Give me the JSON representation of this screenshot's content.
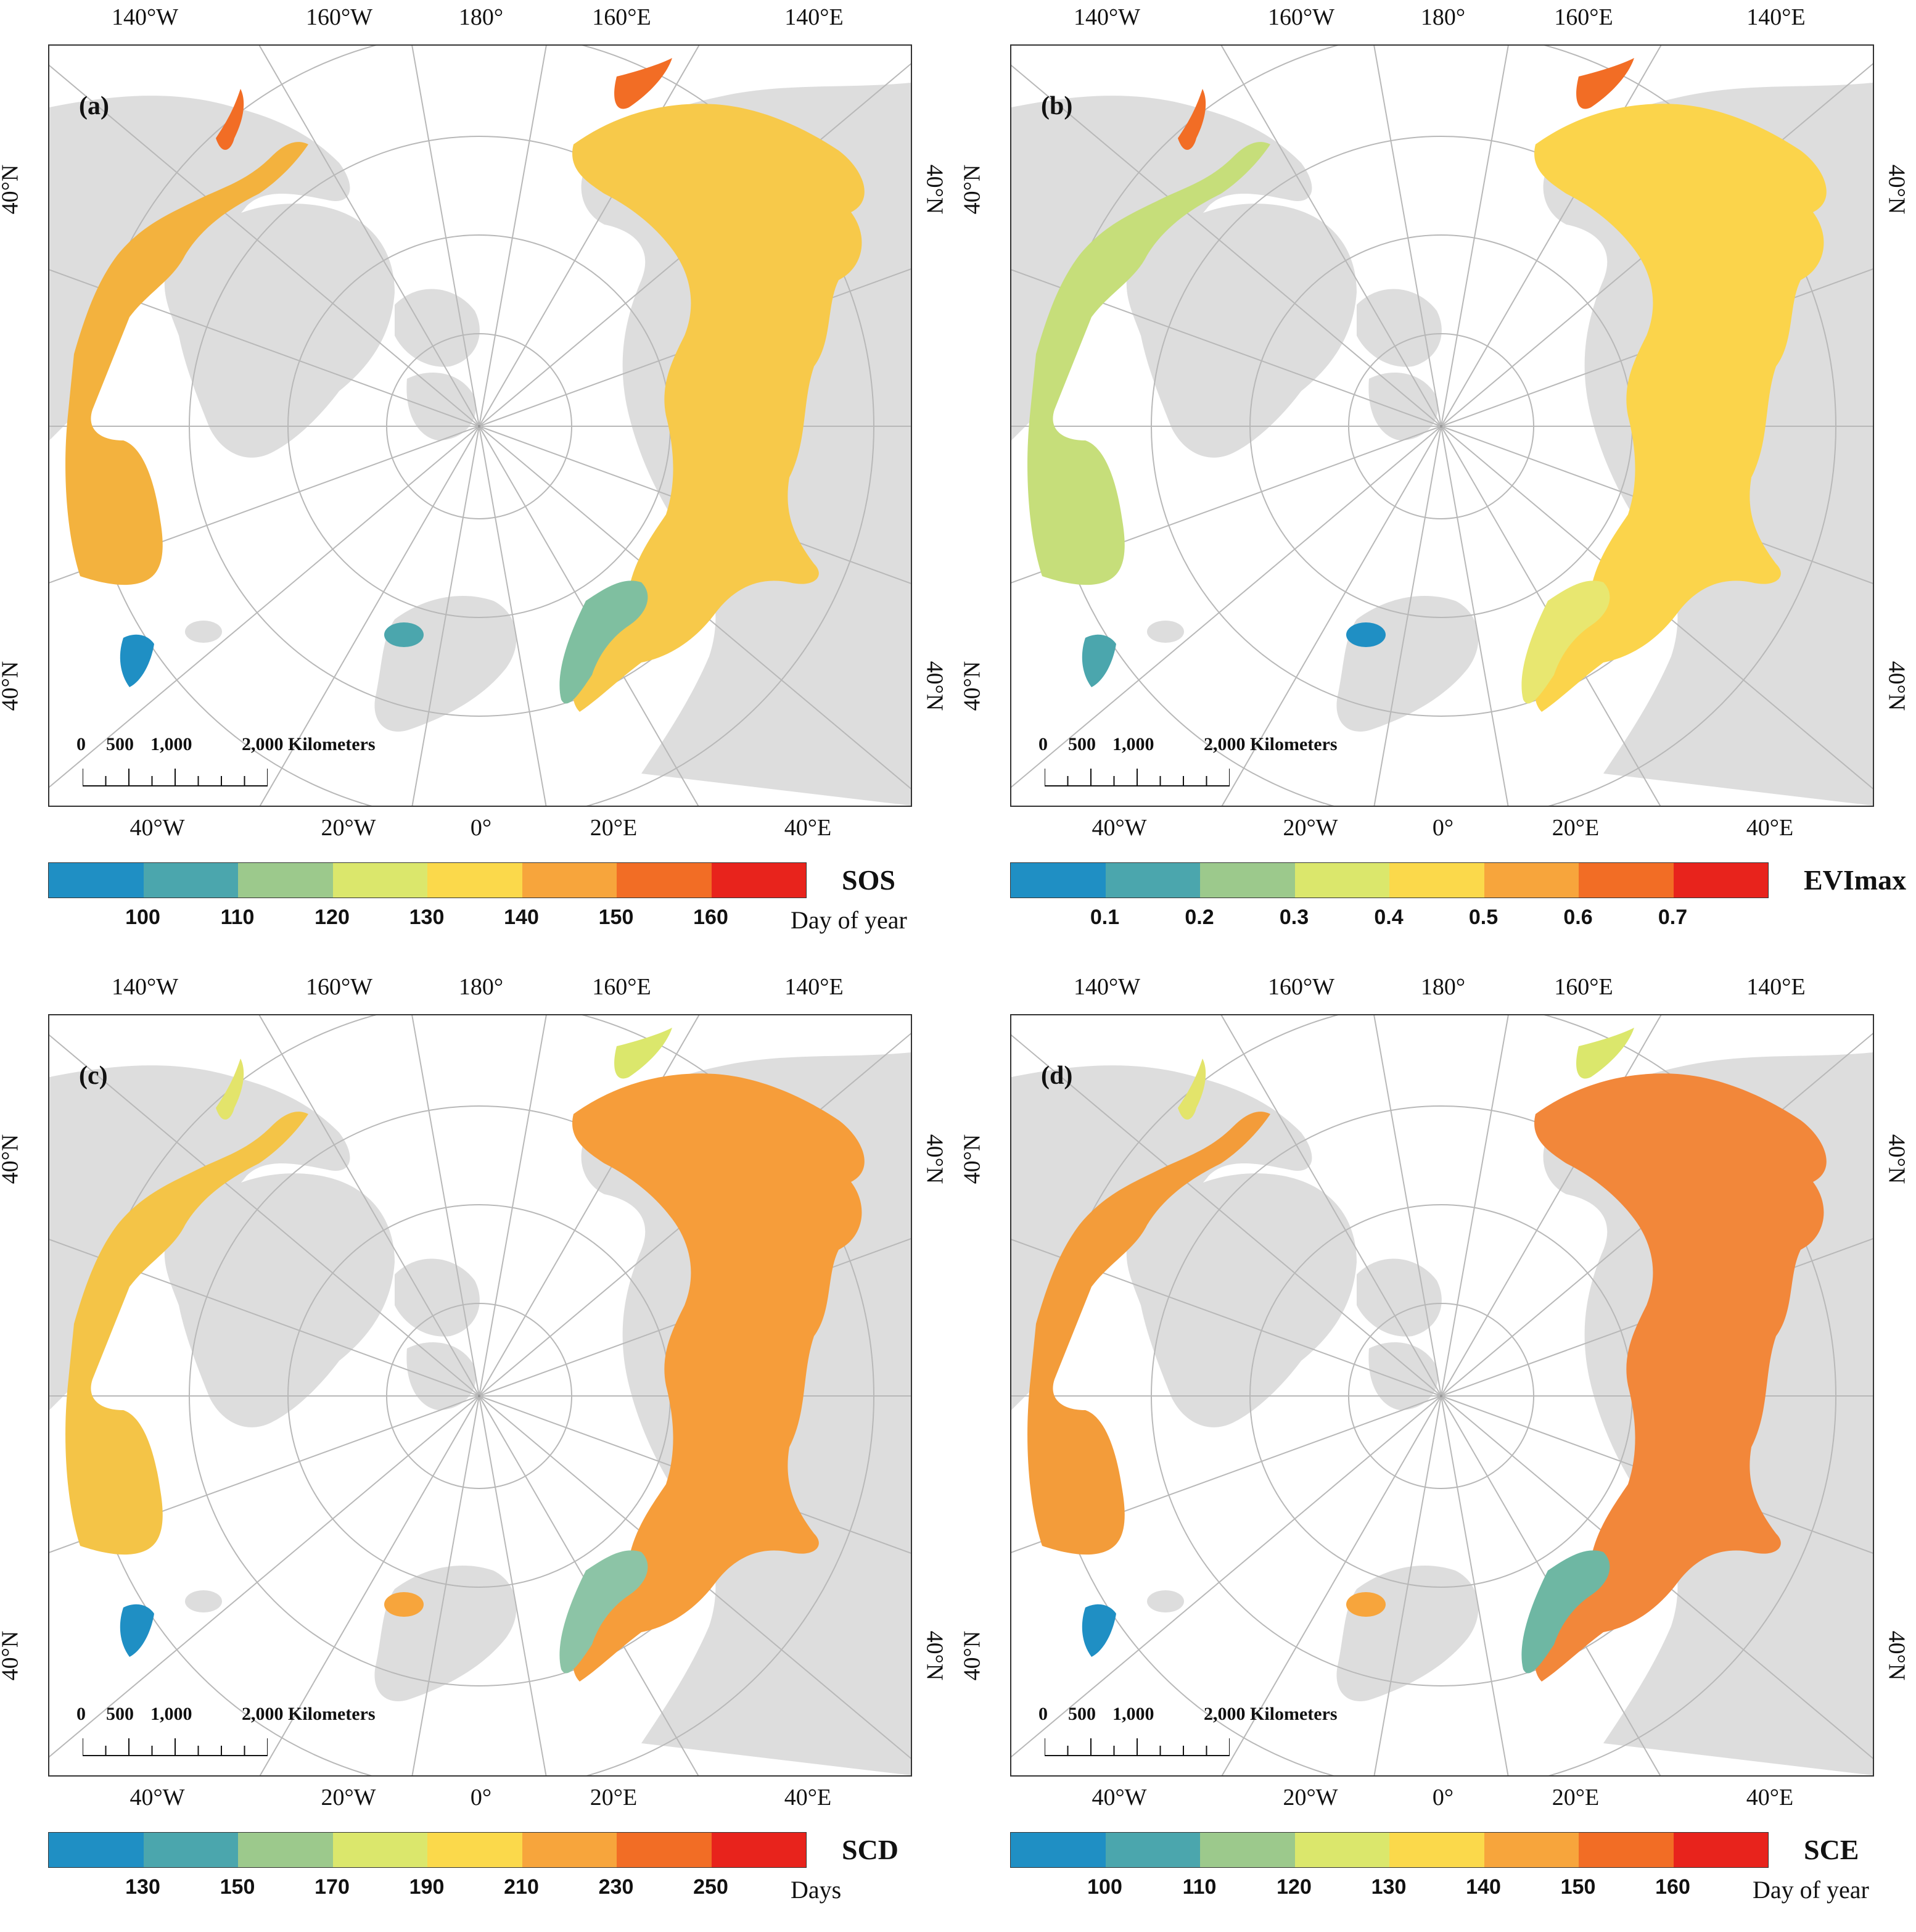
{
  "labels": {
    "lon_top": [
      "140°W",
      "160°W",
      "180°",
      "160°E",
      "140°E"
    ],
    "lon_bottom": [
      "40°W",
      "20°W",
      "0°",
      "20°E",
      "40°E"
    ],
    "lat": "40°N",
    "scale_ticks": [
      "0",
      "500",
      "1,000",
      "2,000 Kilometers"
    ]
  },
  "colors": {
    "palette": [
      "#1f8fc4",
      "#4ba6ad",
      "#9cc98c",
      "#dbe76c",
      "#fbd94b",
      "#f7a53c",
      "#f26d25",
      "#e8231c"
    ],
    "land": "#dddddd",
    "grid": "#b8b8b8"
  },
  "panels": [
    {
      "id": "a",
      "label": "(a)",
      "variable": "SOS",
      "unit": "Day of year",
      "ticks": [
        "100",
        "110",
        "120",
        "130",
        "140",
        "150",
        "160"
      ]
    },
    {
      "id": "b",
      "label": "(b)",
      "variable": "EVImax",
      "unit": "",
      "ticks": [
        "0.1",
        "0.2",
        "0.3",
        "0.4",
        "0.5",
        "0.6",
        "0.7"
      ]
    },
    {
      "id": "c",
      "label": "(c)",
      "variable": "SCD",
      "unit": "Days",
      "ticks": [
        "130",
        "150",
        "170",
        "190",
        "210",
        "230",
        "250"
      ]
    },
    {
      "id": "d",
      "label": "(d)",
      "variable": "SCE",
      "unit": "Day of year",
      "ticks": [
        "100",
        "110",
        "120",
        "130",
        "140",
        "150",
        "160"
      ]
    }
  ]
}
